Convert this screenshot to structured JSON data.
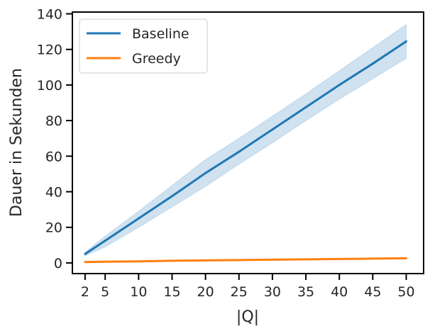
{
  "chart_data": {
    "type": "line",
    "title": "",
    "xlabel": "|Q|",
    "ylabel": "Dauer in Sekunden",
    "x_ticks": [
      2,
      5,
      10,
      15,
      20,
      25,
      30,
      35,
      40,
      45,
      50
    ],
    "y_ticks": [
      0,
      20,
      40,
      60,
      80,
      100,
      120,
      140
    ],
    "xlim": [
      0.1,
      52.6
    ],
    "ylim": [
      -6,
      141
    ],
    "grid": false,
    "legend_position": "top-left",
    "series": [
      {
        "name": "Baseline",
        "color": "#1f77b4",
        "band_color": "#a9c9e3",
        "x": [
          2,
          5,
          10,
          15,
          20,
          25,
          30,
          35,
          40,
          45,
          50
        ],
        "y": [
          5,
          12.5,
          25,
          37.5,
          50.5,
          62.5,
          75,
          87.5,
          100,
          112,
          124.5
        ],
        "lower": [
          4,
          9,
          20,
          31.5,
          43,
          55.5,
          67.5,
          80,
          92,
          103.5,
          115
        ],
        "upper": [
          6,
          15,
          29,
          43.5,
          58,
          70,
          82.5,
          95,
          108,
          121,
          134
        ]
      },
      {
        "name": "Greedy",
        "color": "#ff7f0e",
        "band_color": "#ffcf9e",
        "x": [
          2,
          5,
          10,
          15,
          20,
          25,
          30,
          35,
          40,
          45,
          50
        ],
        "y": [
          0.5,
          0.7,
          0.9,
          1.2,
          1.4,
          1.6,
          1.8,
          2.0,
          2.2,
          2.4,
          2.6
        ],
        "lower": [
          0.4,
          0.6,
          0.8,
          1.1,
          1.3,
          1.5,
          1.7,
          1.9,
          2.1,
          2.3,
          2.5
        ],
        "upper": [
          0.6,
          0.8,
          1.0,
          1.3,
          1.5,
          1.7,
          1.9,
          2.1,
          2.3,
          2.5,
          2.7
        ]
      }
    ]
  }
}
